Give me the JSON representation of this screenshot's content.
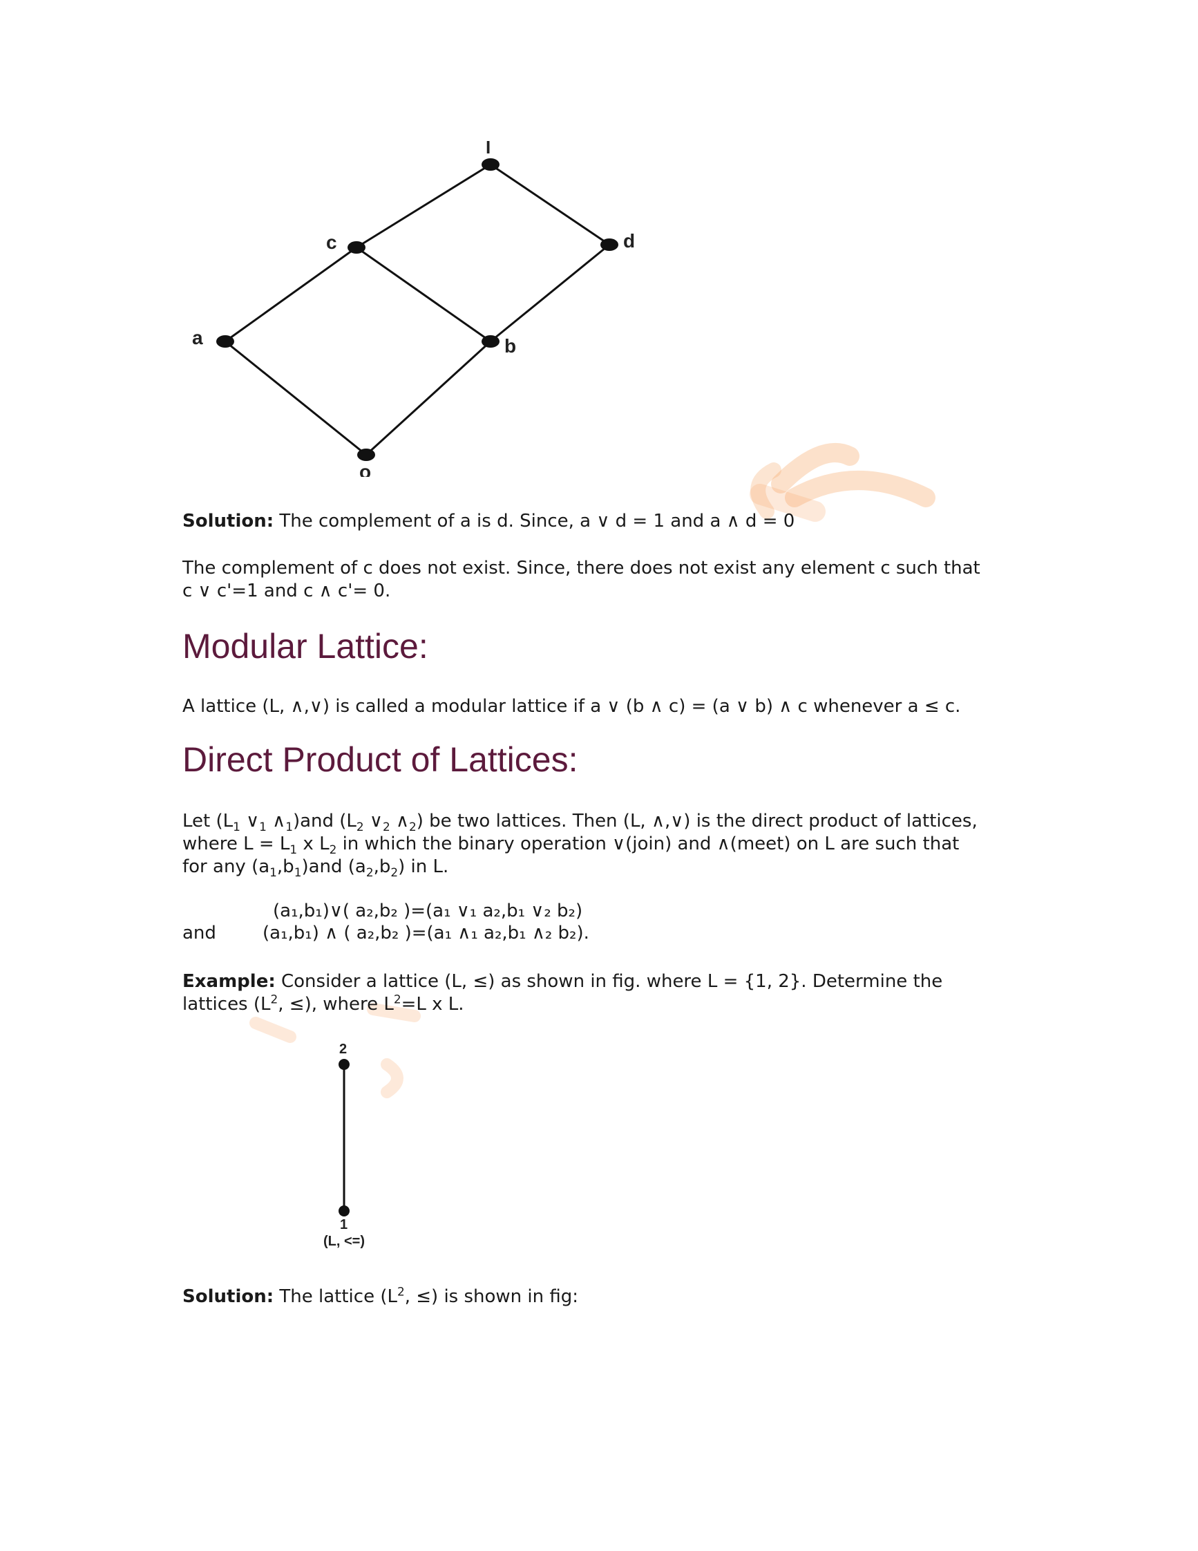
{
  "diagram1": {
    "nodes": [
      {
        "id": "1",
        "label": "I"
      },
      {
        "id": "c",
        "label": "c"
      },
      {
        "id": "d",
        "label": "d"
      },
      {
        "id": "a",
        "label": "a"
      },
      {
        "id": "b",
        "label": "b"
      },
      {
        "id": "0",
        "label": "o"
      }
    ],
    "edges": [
      [
        "1",
        "c"
      ],
      [
        "1",
        "d"
      ],
      [
        "c",
        "a"
      ],
      [
        "c",
        "b"
      ],
      [
        "d",
        "b"
      ],
      [
        "a",
        "0"
      ],
      [
        "b",
        "0"
      ]
    ]
  },
  "solution1": {
    "label": "Solution:",
    "text": " The complement of a is d. Since, a ∨ d = 1 and a ∧ d = 0"
  },
  "complement_c": {
    "line1": "The complement of c does not exist. Since, there does not exist any element c such that",
    "line2": "c ∨ c'=1 and c ∧ c'= 0."
  },
  "modular": {
    "heading": "Modular Lattice:",
    "text": "A lattice (L, ∧,∨) is called a modular lattice if a ∨ (b ∧ c) = (a ∨ b) ∧ c whenever a ≤ c."
  },
  "direct_product": {
    "heading": "Direct Product of Lattices:",
    "p1_a": "Let (L",
    "p1_s1": "1",
    "p1_b": " ∨",
    "p1_s2": "1",
    "p1_c": " ∧",
    "p1_s3": "1",
    "p1_d": ")and (L",
    "p1_s4": "2",
    "p1_e": " ∨",
    "p1_s5": "2",
    "p1_f": " ∧",
    "p1_s6": "2",
    "p1_g": ") be two lattices. Then (L, ∧,∨) is the direct product of lattices,",
    "p2_a": "where L = L",
    "p2_s1": "1",
    "p2_b": " x L",
    "p2_s2": "2",
    "p2_c": " in which the binary operation ∨(join) and ∧(meet) on L are such that",
    "p3_a": "for any (a",
    "p3_s1": "1",
    "p3_b": ",b",
    "p3_s2": "1",
    "p3_c": ")and (a",
    "p3_s3": "2",
    "p3_d": ",b",
    "p3_s4": "2",
    "p3_e": ") in L.",
    "and_label": "and",
    "eq1": "(a₁,b₁)∨( a₂,b₂ )=(a₁ ∨₁ a₂,b₁ ∨₂ b₂)",
    "eq2": "(a₁,b₁) ∧ ( a₂,b₂ )=(a₁ ∧₁ a₂,b₁ ∧₂ b₂)."
  },
  "example": {
    "label": "Example:",
    "line1": " Consider a lattice (L, ≤) as shown in fig. where L = {1, 2}. Determine the",
    "line2_a": "lattices (L",
    "line2_sup1": "2",
    "line2_b": ", ≤), where L",
    "line2_sup2": "2",
    "line2_c": "=L x L."
  },
  "diagram2": {
    "top_label": "2",
    "bottom_label": "1",
    "caption": "(L, <=)"
  },
  "solution2": {
    "label": "Solution:",
    "text_a": " The lattice (L",
    "text_sup": "2",
    "text_b": ", ≤) is shown in fig:"
  },
  "colors": {
    "heading": "#5c1a3c",
    "watermark": "#f6a96b"
  }
}
